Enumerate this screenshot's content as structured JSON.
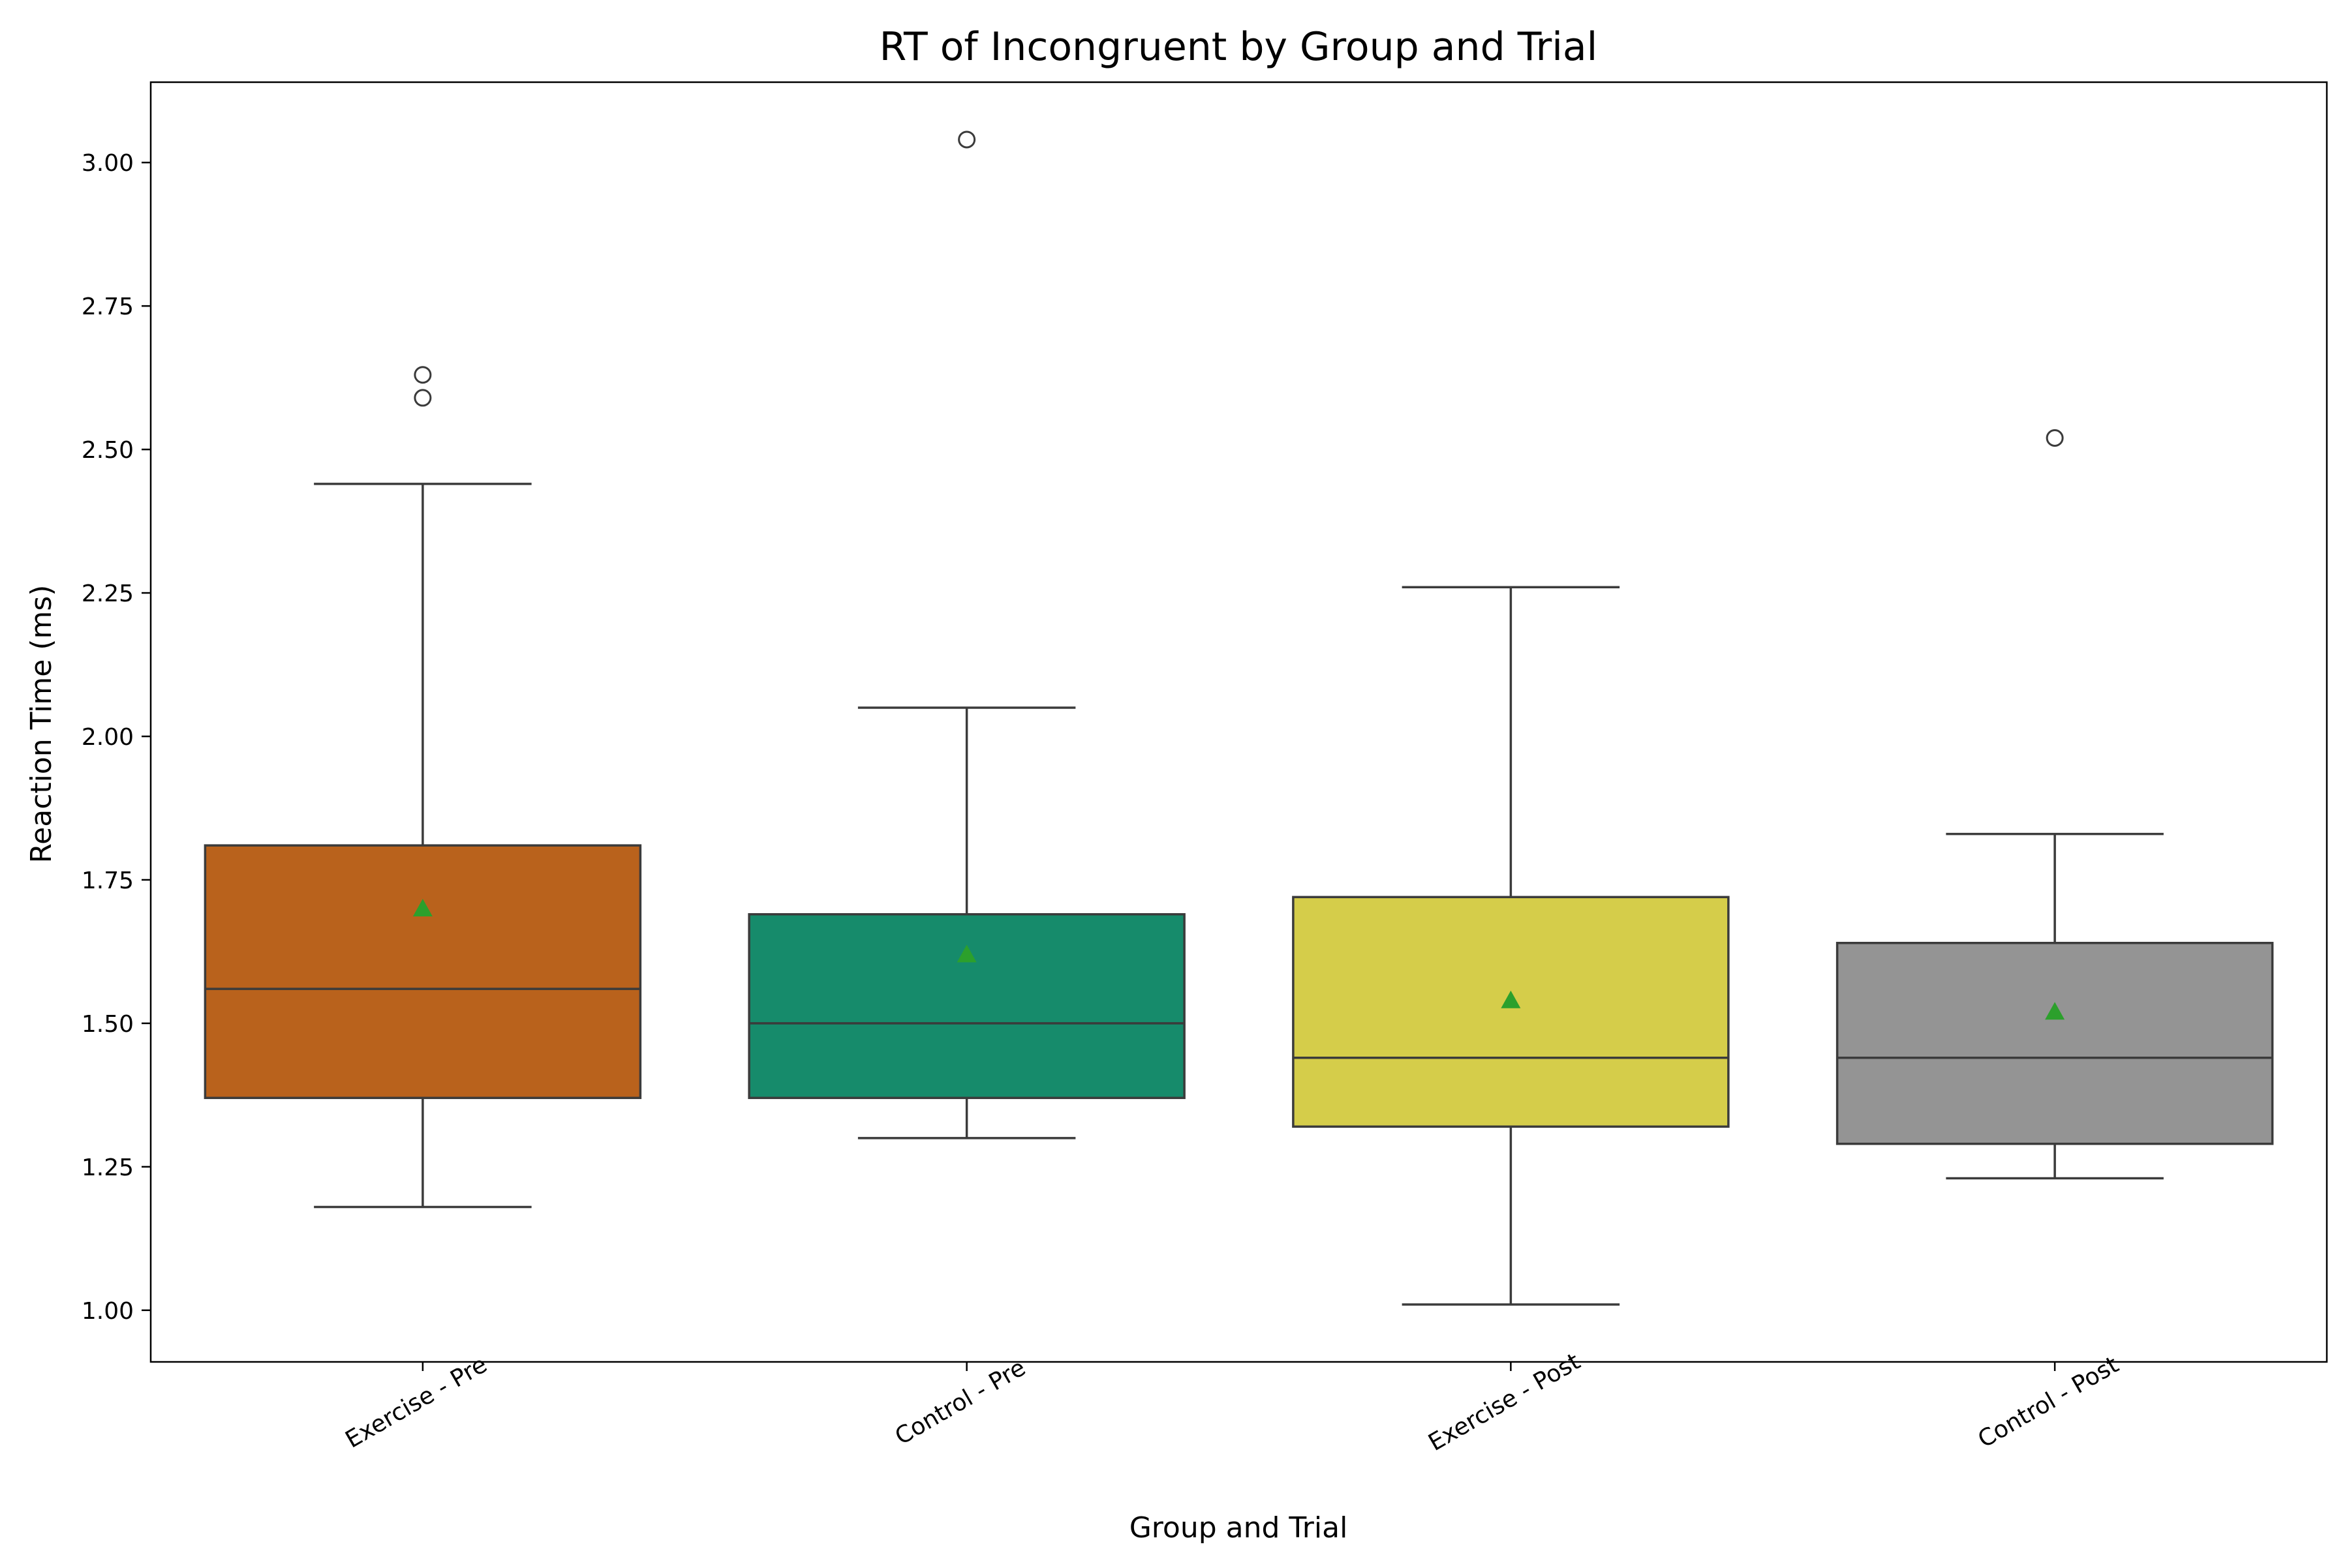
{
  "chart_data": {
    "type": "box",
    "title": "RT of Incongruent by Group and Trial",
    "xlabel": "Group and Trial",
    "ylabel": "Reaction Time (ms)",
    "ylim": [
      0.91,
      3.14
    ],
    "yticks": [
      1.0,
      1.25,
      1.5,
      1.75,
      2.0,
      2.25,
      2.5,
      2.75,
      3.0
    ],
    "ytick_labels": [
      "1.00",
      "1.25",
      "1.50",
      "1.75",
      "2.00",
      "2.25",
      "2.50",
      "2.75",
      "3.00"
    ],
    "grid": false,
    "mean_marker_color": "#2ca02c",
    "categories": [
      "Exercise - Pre",
      "Control - Pre",
      "Exercise - Post",
      "Control - Post"
    ],
    "boxes": [
      {
        "category": "Exercise - Pre",
        "color": "#b9621c",
        "whisker_low": 1.18,
        "q1": 1.37,
        "median": 1.56,
        "q3": 1.81,
        "whisker_high": 2.44,
        "mean": 1.7,
        "outliers": [
          2.59,
          2.63
        ]
      },
      {
        "category": "Control - Pre",
        "color": "#168b6b",
        "whisker_low": 1.3,
        "q1": 1.37,
        "median": 1.5,
        "q3": 1.69,
        "whisker_high": 2.05,
        "mean": 1.62,
        "outliers": [
          3.04
        ]
      },
      {
        "category": "Exercise - Post",
        "color": "#d5cd4a",
        "whisker_low": 1.01,
        "q1": 1.32,
        "median": 1.44,
        "q3": 1.72,
        "whisker_high": 2.26,
        "mean": 1.54,
        "outliers": []
      },
      {
        "category": "Control - Post",
        "color": "#949494",
        "whisker_low": 1.23,
        "q1": 1.29,
        "median": 1.44,
        "q3": 1.64,
        "whisker_high": 1.83,
        "mean": 1.52,
        "outliers": [
          2.52
        ]
      }
    ]
  }
}
